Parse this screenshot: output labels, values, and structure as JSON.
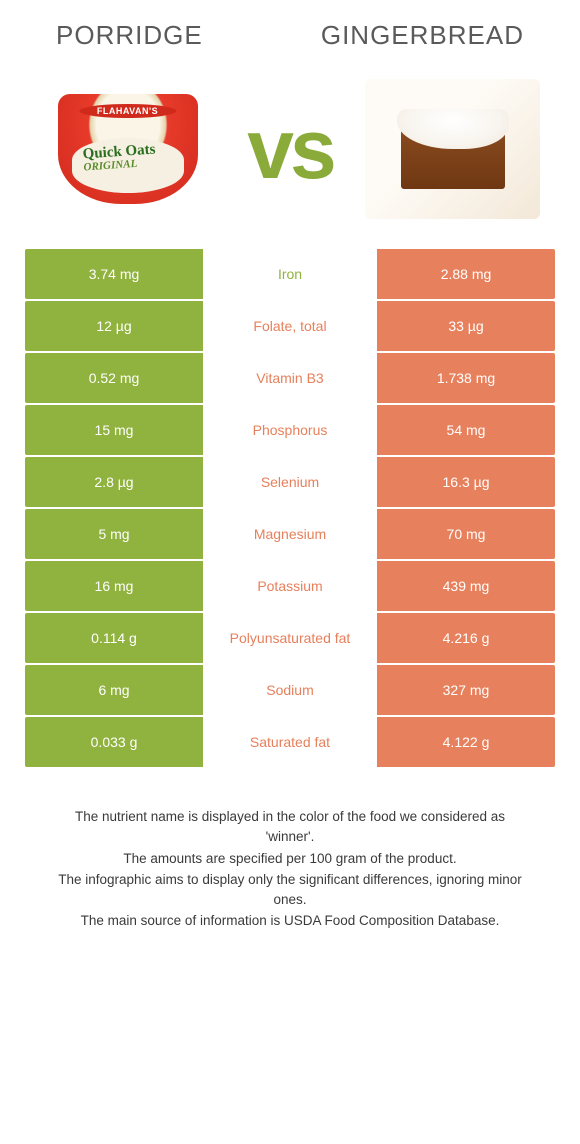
{
  "colors": {
    "porridge": "#90b23e",
    "gingerbread": "#e7805c",
    "neutral_text": "#5a5a5a"
  },
  "header": {
    "left_title": "Porridge",
    "right_title": "Gingerbread"
  },
  "vs_label": "vs",
  "rows": [
    {
      "left": "3.74 mg",
      "label": "Iron",
      "right": "2.88 mg",
      "winner": "left"
    },
    {
      "left": "12 µg",
      "label": "Folate, total",
      "right": "33 µg",
      "winner": "right"
    },
    {
      "left": "0.52 mg",
      "label": "Vitamin B3",
      "right": "1.738 mg",
      "winner": "right"
    },
    {
      "left": "15 mg",
      "label": "Phosphorus",
      "right": "54 mg",
      "winner": "right"
    },
    {
      "left": "2.8 µg",
      "label": "Selenium",
      "right": "16.3 µg",
      "winner": "right"
    },
    {
      "left": "5 mg",
      "label": "Magnesium",
      "right": "70 mg",
      "winner": "right"
    },
    {
      "left": "16 mg",
      "label": "Potassium",
      "right": "439 mg",
      "winner": "right"
    },
    {
      "left": "0.114 g",
      "label": "Polyunsaturated fat",
      "right": "4.216 g",
      "winner": "right"
    },
    {
      "left": "6 mg",
      "label": "Sodium",
      "right": "327 mg",
      "winner": "right"
    },
    {
      "left": "0.033 g",
      "label": "Saturated fat",
      "right": "4.122 g",
      "winner": "right"
    }
  ],
  "footer": {
    "line1": "The nutrient name is displayed in the color of the food we considered as 'winner'.",
    "line2": "The amounts are specified per 100 gram of the product.",
    "line3": "The infographic aims to display only the significant differences, ignoring minor ones.",
    "line4": "The main source of information is USDA Food Composition Database."
  },
  "porridge_image": {
    "brand": "FLAHAVAN'S",
    "label_top": "Quick",
    "label_bottom": "Oats",
    "variant": "ORIGINAL"
  }
}
